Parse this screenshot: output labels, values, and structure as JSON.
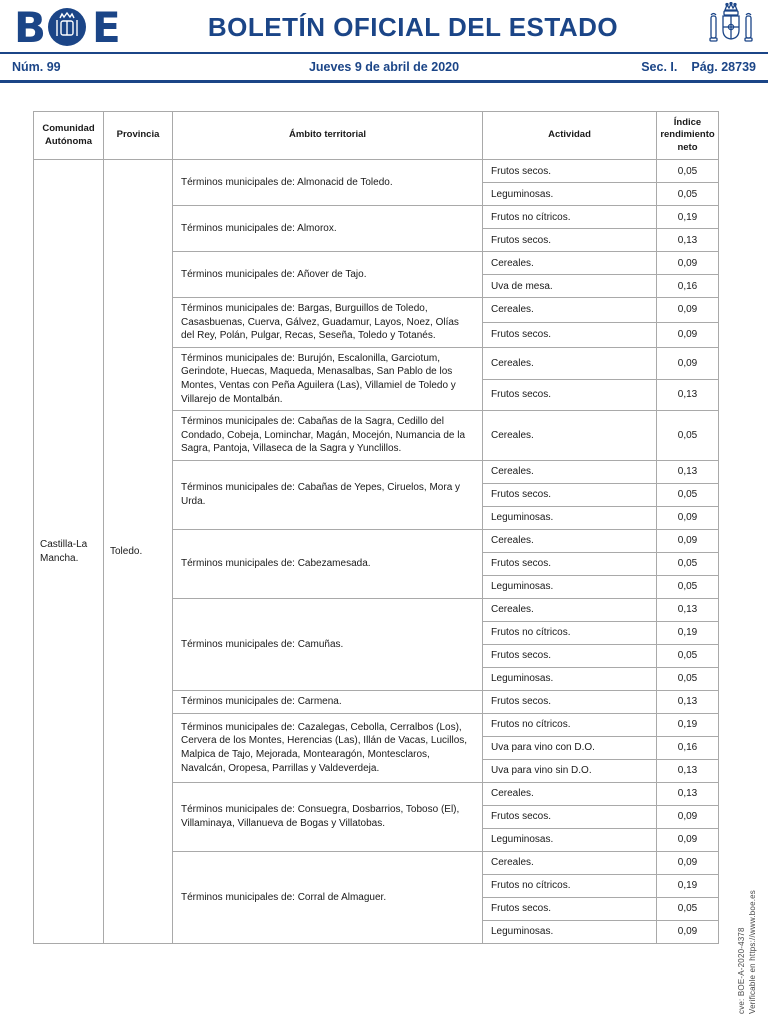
{
  "header": {
    "logo_text": "BOE",
    "title": "BOLETÍN OFICIAL DEL ESTADO",
    "issue": "Núm. 99",
    "date": "Jueves 9 de abril de 2020",
    "section": "Sec. I.",
    "page": "Pág. 28739"
  },
  "colors": {
    "boe_blue": "#1b4587",
    "table_border": "#a9a9a9"
  },
  "icons": {
    "logo": "boe-logo",
    "coat_of_arms": "spain-coat-of-arms-icon"
  },
  "table": {
    "headers": [
      "Comunidad Autónoma",
      "Provincia",
      "Ámbito territorial",
      "Actividad",
      "Índice rendimiento neto"
    ],
    "comunidad": "Castilla-La Mancha.",
    "provincia": "Toledo.",
    "groups": [
      {
        "ambito": "Términos municipales de: Almonacid de Toledo.",
        "rows": [
          {
            "actividad": "Frutos secos.",
            "indice": "0,05"
          },
          {
            "actividad": "Leguminosas.",
            "indice": "0,05"
          }
        ]
      },
      {
        "ambito": "Términos municipales de: Almorox.",
        "rows": [
          {
            "actividad": "Frutos no cítricos.",
            "indice": "0,19"
          },
          {
            "actividad": "Frutos secos.",
            "indice": "0,13"
          }
        ]
      },
      {
        "ambito": "Términos municipales de: Añover de Tajo.",
        "rows": [
          {
            "actividad": "Cereales.",
            "indice": "0,09"
          },
          {
            "actividad": "Uva de mesa.",
            "indice": "0,16"
          }
        ]
      },
      {
        "ambito": "Términos municipales de: Bargas, Burguillos de Toledo, Casasbuenas, Cuerva, Gálvez, Guadamur, Layos, Noez, Olías del Rey, Polán, Pulgar, Recas, Seseña, Toledo y Totanés.",
        "rows": [
          {
            "actividad": "Cereales.",
            "indice": "0,09"
          },
          {
            "actividad": "Frutos secos.",
            "indice": "0,09"
          }
        ]
      },
      {
        "ambito": "Términos municipales de: Burujón, Escalonilla, Garciotum, Gerindote, Huecas, Maqueda, Menasalbas, San Pablo de los Montes, Ventas con Peña Aguilera (Las), Villamiel de Toledo y Villarejo de Montalbán.",
        "rows": [
          {
            "actividad": "Cereales.",
            "indice": "0,09"
          },
          {
            "actividad": "Frutos secos.",
            "indice": "0,13"
          }
        ]
      },
      {
        "ambito": "Términos municipales de: Cabañas de la Sagra, Cedillo del Condado, Cobeja, Lominchar, Magán, Mocejón, Numancia de la Sagra, Pantoja, Villaseca de la Sagra y Yunclillos.",
        "rows": [
          {
            "actividad": "Cereales.",
            "indice": "0,05"
          }
        ]
      },
      {
        "ambito": "Términos municipales de: Cabañas de Yepes, Ciruelos, Mora y Urda.",
        "rows": [
          {
            "actividad": "Cereales.",
            "indice": "0,13"
          },
          {
            "actividad": "Frutos secos.",
            "indice": "0,05"
          },
          {
            "actividad": "Leguminosas.",
            "indice": "0,09"
          }
        ]
      },
      {
        "ambito": "Términos municipales de: Cabezamesada.",
        "rows": [
          {
            "actividad": "Cereales.",
            "indice": "0,09"
          },
          {
            "actividad": "Frutos secos.",
            "indice": "0,05"
          },
          {
            "actividad": "Leguminosas.",
            "indice": "0,05"
          }
        ]
      },
      {
        "ambito": "Términos municipales de: Camuñas.",
        "rows": [
          {
            "actividad": "Cereales.",
            "indice": "0,13"
          },
          {
            "actividad": "Frutos no cítricos.",
            "indice": "0,19"
          },
          {
            "actividad": "Frutos secos.",
            "indice": "0,05"
          },
          {
            "actividad": "Leguminosas.",
            "indice": "0,05"
          }
        ]
      },
      {
        "ambito": "Términos municipales de: Carmena.",
        "rows": [
          {
            "actividad": "Frutos secos.",
            "indice": "0,13"
          }
        ]
      },
      {
        "ambito": "Términos municipales de: Cazalegas, Cebolla, Cerralbos (Los), Cervera de los Montes, Herencias (Las), Illán de Vacas, Lucillos, Malpica de Tajo, Mejorada, Montearagón, Montesclaros, Navalcán, Oropesa, Parrillas y Valdeverdeja.",
        "rows": [
          {
            "actividad": "Frutos no cítricos.",
            "indice": "0,19"
          },
          {
            "actividad": "Uva para vino con D.O.",
            "indice": "0,16"
          },
          {
            "actividad": "Uva para vino sin D.O.",
            "indice": "0,13"
          }
        ]
      },
      {
        "ambito": "Términos municipales de: Consuegra, Dosbarrios, Toboso (El), Villaminaya, Villanueva de Bogas y Villatobas.",
        "rows": [
          {
            "actividad": "Cereales.",
            "indice": "0,13"
          },
          {
            "actividad": "Frutos secos.",
            "indice": "0,09"
          },
          {
            "actividad": "Leguminosas.",
            "indice": "0,09"
          }
        ]
      },
      {
        "ambito": "Términos municipales de: Corral de Almaguer.",
        "rows": [
          {
            "actividad": "Cereales.",
            "indice": "0,09"
          },
          {
            "actividad": "Frutos no cítricos.",
            "indice": "0,19"
          },
          {
            "actividad": "Frutos secos.",
            "indice": "0,05"
          },
          {
            "actividad": "Leguminosas.",
            "indice": "0,09"
          }
        ]
      }
    ]
  },
  "footer": {
    "cve": "cve: BOE-A-2020-4378",
    "verificable": "Verificable en https://www.boe.es"
  }
}
